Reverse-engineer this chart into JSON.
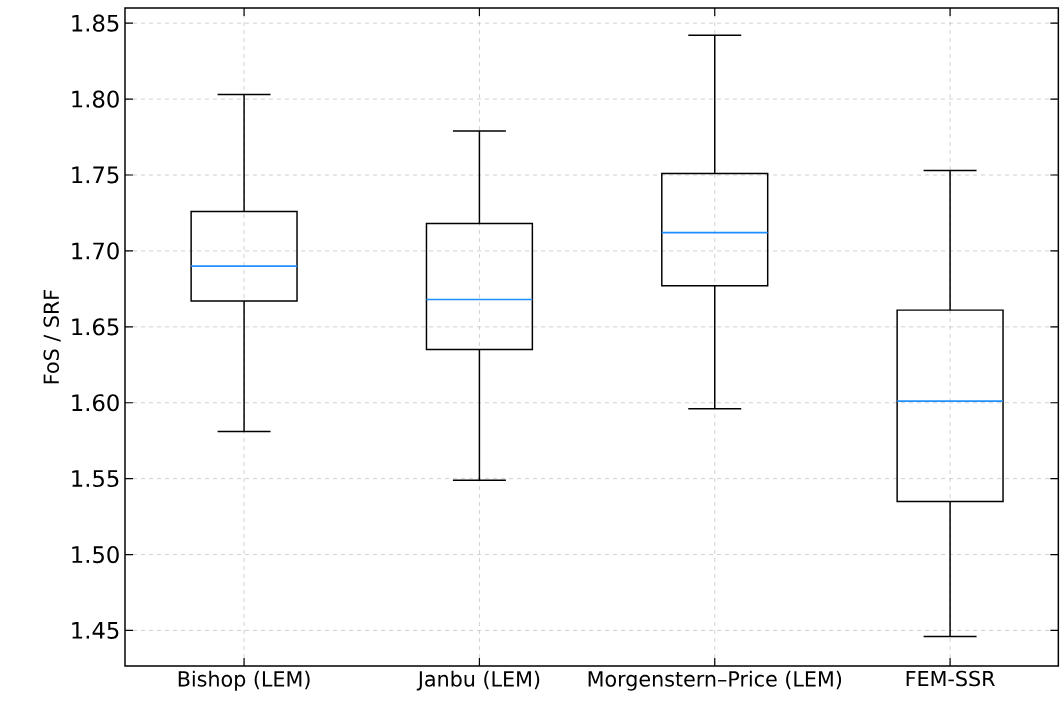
{
  "chart_data": {
    "type": "box",
    "ylabel": "FoS / SRF",
    "categories": [
      "Bishop (LEM)",
      "Janbu (LEM)",
      "Morgenstern–Price (LEM)",
      "FEM-SSR"
    ],
    "boxes": [
      {
        "low": 1.581,
        "q1": 1.667,
        "median": 1.69,
        "q3": 1.726,
        "high": 1.803
      },
      {
        "low": 1.549,
        "q1": 1.635,
        "median": 1.668,
        "q3": 1.718,
        "high": 1.779
      },
      {
        "low": 1.596,
        "q1": 1.677,
        "median": 1.712,
        "q3": 1.751,
        "high": 1.842
      },
      {
        "low": 1.446,
        "q1": 1.535,
        "median": 1.601,
        "q3": 1.661,
        "high": 1.753
      }
    ],
    "ylim": [
      1.4266,
      1.86
    ],
    "yticks": [
      1.45,
      {
        "value": 1.5,
        "label": "1.50"
      },
      1.55,
      {
        "value": 1.6,
        "label": "1.60"
      },
      1.65,
      {
        "value": 1.7,
        "label": "1.70"
      },
      1.75,
      {
        "value": 1.8,
        "label": "1.80"
      },
      1.85
    ],
    "grid": true
  }
}
